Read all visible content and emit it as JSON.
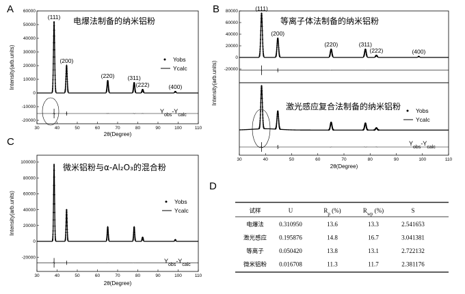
{
  "chart_data": [
    {
      "id": "A",
      "type": "line",
      "panel_letter": "A",
      "title": "电爆法制备的纳米铝粉",
      "xlabel": "2θ(Degree)",
      "ylabel": "Intensity(arb.units)",
      "xlim": [
        30,
        110
      ],
      "ylim": [
        -25000,
        60000
      ],
      "xticks": [
        "30",
        "40",
        "50",
        "60",
        "70",
        "80",
        "90",
        "100",
        "110"
      ],
      "yticks": [
        "-20000",
        "-10000",
        "0",
        "10000",
        "20000",
        "30000",
        "40000",
        "50000",
        "60000"
      ],
      "peaks": [
        {
          "label": "(111)",
          "x": 38.5,
          "y": 52000
        },
        {
          "label": "(200)",
          "x": 44.7,
          "y": 20000
        },
        {
          "label": "(220)",
          "x": 65.1,
          "y": 9000
        },
        {
          "label": "(311)",
          "x": 78.2,
          "y": 7500
        },
        {
          "label": "(222)",
          "x": 82.4,
          "y": 2500
        },
        {
          "label": "(400)",
          "x": 98.6,
          "y": 1000
        }
      ],
      "diff_offset": -15000,
      "legend": {
        "obs": "Yobs",
        "calc": "Ycalc"
      },
      "diff_label": "Yobs-Ycalc"
    },
    {
      "id": "B1",
      "type": "line",
      "panel_letter": "B",
      "title": "等离子体法制备的纳米铝粉",
      "xlabel": "",
      "ylabel": "Intensity(arb.units)",
      "xlim": [
        30,
        110
      ],
      "ylim": [
        -30000,
        80000
      ],
      "xticks": [],
      "yticks": [
        "-20000",
        "0",
        "20000",
        "40000",
        "60000",
        "80000"
      ],
      "peaks": [
        {
          "label": "(111)",
          "x": 38.5,
          "y": 76000
        },
        {
          "label": "(200)",
          "x": 44.7,
          "y": 33000
        },
        {
          "label": "(220)",
          "x": 65.1,
          "y": 14000
        },
        {
          "label": "(311)",
          "x": 78.2,
          "y": 14000
        },
        {
          "label": "(222)",
          "x": 82.4,
          "y": 3500
        },
        {
          "label": "(400)",
          "x": 98.6,
          "y": 1500
        }
      ],
      "diff_offset": -22000
    },
    {
      "id": "B2",
      "type": "line",
      "title": "激光感应复合法制备的纳米铝粉",
      "xlabel": "2θ(Degree)",
      "ylabel": "",
      "xlim": [
        30,
        110
      ],
      "xticks": [
        "30",
        "40",
        "50",
        "60",
        "70",
        "80",
        "90",
        "100",
        "110"
      ],
      "peaks": [
        {
          "label": "",
          "x": 38.5,
          "y": 1.0
        },
        {
          "label": "",
          "x": 44.7,
          "y": 0.42
        },
        {
          "label": "",
          "x": 65.1,
          "y": 0.18
        },
        {
          "label": "",
          "x": 78.2,
          "y": 0.16
        },
        {
          "label": "",
          "x": 82.4,
          "y": 0.05
        }
      ],
      "legend": {
        "obs": "Yobs",
        "calc": "Ycalc"
      },
      "diff_label": "Yobs-Ycalc"
    },
    {
      "id": "C",
      "type": "line",
      "panel_letter": "C",
      "title": "微米铝粉与α-Al₂O₃的混合粉",
      "xlabel": "2θ(Degree)",
      "ylabel": "Intensity(arb.units)",
      "xlim": [
        30,
        110
      ],
      "ylim": [
        -30000,
        100000
      ],
      "xticks": [
        "30",
        "40",
        "50",
        "60",
        "70",
        "80",
        "90",
        "100",
        "110"
      ],
      "yticks": [
        "-20000",
        "0",
        "20000",
        "40000",
        "60000",
        "80000",
        "100000"
      ],
      "peaks": [
        {
          "label": "",
          "x": 38.5,
          "y": 97000
        },
        {
          "label": "",
          "x": 44.7,
          "y": 40000
        },
        {
          "label": "",
          "x": 65.1,
          "y": 18000
        },
        {
          "label": "",
          "x": 78.2,
          "y": 18000
        },
        {
          "label": "",
          "x": 82.4,
          "y": 5000
        },
        {
          "label": "",
          "x": 98.6,
          "y": 2000
        }
      ],
      "diff_offset": -27000,
      "legend": {
        "obs": "Yobs",
        "calc": "Ycalc"
      },
      "diff_label": "Yobs-Ycalc"
    },
    {
      "id": "D",
      "type": "table",
      "panel_letter": "D",
      "columns": [
        "试样",
        "U",
        "Rp (%)",
        "Rwp (%)",
        "S"
      ],
      "rows": [
        [
          "电爆法",
          "0.310950",
          "13.6",
          "13.3",
          "2.541653"
        ],
        [
          "激光感应",
          "0.195876",
          "14.8",
          "16.7",
          "3.041381"
        ],
        [
          "等离子",
          "0.050420",
          "13.8",
          "13.1",
          "2.722132"
        ],
        [
          "微米铝粉",
          "0.016708",
          "11.3",
          "11.7",
          "2.381176"
        ]
      ]
    }
  ]
}
